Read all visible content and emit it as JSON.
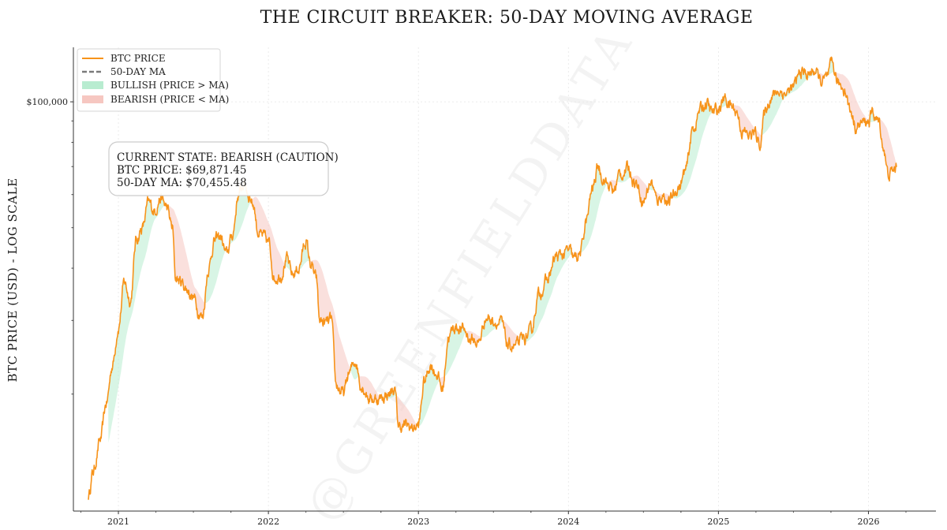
{
  "chart_data": {
    "type": "line",
    "title": "THE CIRCUIT BREAKER: 50-DAY MOVING AVERAGE",
    "xlabel": "",
    "ylabel": "BTC PRICE (USD) - LOG SCALE",
    "yscale": "log",
    "xlim": [
      2020.7,
      2026.45
    ],
    "ylim": [
      10500,
      135000
    ],
    "x_tick_labels": [
      "2021",
      "2022",
      "2023",
      "2024",
      "2025",
      "2026"
    ],
    "x_tick_values": [
      2021.0,
      2022.0,
      2023.0,
      2024.0,
      2025.0,
      2026.0
    ],
    "y_tick_labels": [
      "$100,000"
    ],
    "y_tick_values": [
      100000
    ],
    "y_minor_tick_values": [
      20000,
      30000,
      40000,
      50000,
      60000,
      70000,
      80000,
      90000
    ],
    "grid": true,
    "legend_position": "top-left",
    "legend": [
      {
        "label": "BTC PRICE",
        "kind": "line",
        "color": "#f7931a"
      },
      {
        "label": "50-DAY MA",
        "kind": "dashed",
        "color": "#7a7a7a"
      },
      {
        "label": "BULLISH (PRICE > MA)",
        "kind": "patch",
        "color": "#b8ecd0"
      },
      {
        "label": "BEARISH (PRICE < MA)",
        "kind": "patch",
        "color": "#f6c7c1"
      }
    ],
    "price_anchors": [
      [
        2020.8,
        11400
      ],
      [
        2020.83,
        13000
      ],
      [
        2020.88,
        15500
      ],
      [
        2020.92,
        19000
      ],
      [
        2020.96,
        23500
      ],
      [
        2021.0,
        29000
      ],
      [
        2021.04,
        37000
      ],
      [
        2021.08,
        33500
      ],
      [
        2021.12,
        47000
      ],
      [
        2021.16,
        50000
      ],
      [
        2021.2,
        57000
      ],
      [
        2021.24,
        55000
      ],
      [
        2021.28,
        59000
      ],
      [
        2021.32,
        56000
      ],
      [
        2021.36,
        50000
      ],
      [
        2021.38,
        38000
      ],
      [
        2021.42,
        37000
      ],
      [
        2021.46,
        35500
      ],
      [
        2021.5,
        34000
      ],
      [
        2021.54,
        31500
      ],
      [
        2021.56,
        30500
      ],
      [
        2021.6,
        40000
      ],
      [
        2021.64,
        46500
      ],
      [
        2021.68,
        47500
      ],
      [
        2021.72,
        43000
      ],
      [
        2021.76,
        48000
      ],
      [
        2021.8,
        60000
      ],
      [
        2021.84,
        64000
      ],
      [
        2021.87,
        60000
      ],
      [
        2021.9,
        57000
      ],
      [
        2021.93,
        49000
      ],
      [
        2021.96,
        47500
      ],
      [
        2022.0,
        46000
      ],
      [
        2022.04,
        38000
      ],
      [
        2022.08,
        38500
      ],
      [
        2022.12,
        42000
      ],
      [
        2022.16,
        38500
      ],
      [
        2022.2,
        40000
      ],
      [
        2022.25,
        46500
      ],
      [
        2022.28,
        41000
      ],
      [
        2022.32,
        37500
      ],
      [
        2022.34,
        30000
      ],
      [
        2022.38,
        29500
      ],
      [
        2022.42,
        30000
      ],
      [
        2022.45,
        21000
      ],
      [
        2022.5,
        20000
      ],
      [
        2022.54,
        22500
      ],
      [
        2022.58,
        24000
      ],
      [
        2022.62,
        21000
      ],
      [
        2022.68,
        19500
      ],
      [
        2022.74,
        19500
      ],
      [
        2022.8,
        20000
      ],
      [
        2022.84,
        20500
      ],
      [
        2022.87,
        16700
      ],
      [
        2022.92,
        16800
      ],
      [
        2022.96,
        16600
      ],
      [
        2023.0,
        16800
      ],
      [
        2023.04,
        21500
      ],
      [
        2023.08,
        23500
      ],
      [
        2023.12,
        22500
      ],
      [
        2023.16,
        20500
      ],
      [
        2023.2,
        27500
      ],
      [
        2023.25,
        29000
      ],
      [
        2023.3,
        28500
      ],
      [
        2023.35,
        27000
      ],
      [
        2023.4,
        26500
      ],
      [
        2023.45,
        30500
      ],
      [
        2023.5,
        30000
      ],
      [
        2023.55,
        29500
      ],
      [
        2023.6,
        26000
      ],
      [
        2023.65,
        26000
      ],
      [
        2023.7,
        27000
      ],
      [
        2023.75,
        28000
      ],
      [
        2023.8,
        34500
      ],
      [
        2023.85,
        37000
      ],
      [
        2023.92,
        42500
      ],
      [
        2023.96,
        43000
      ],
      [
        2024.0,
        44000
      ],
      [
        2024.04,
        42000
      ],
      [
        2024.08,
        43500
      ],
      [
        2024.12,
        52000
      ],
      [
        2024.16,
        62000
      ],
      [
        2024.2,
        70000
      ],
      [
        2024.23,
        66000
      ],
      [
        2024.27,
        63000
      ],
      [
        2024.3,
        61000
      ],
      [
        2024.34,
        67000
      ],
      [
        2024.4,
        69000
      ],
      [
        2024.45,
        64000
      ],
      [
        2024.5,
        58000
      ],
      [
        2024.55,
        64500
      ],
      [
        2024.59,
        58000
      ],
      [
        2024.63,
        60000
      ],
      [
        2024.67,
        57000
      ],
      [
        2024.7,
        60000
      ],
      [
        2024.74,
        63000
      ],
      [
        2024.78,
        68000
      ],
      [
        2024.83,
        86000
      ],
      [
        2024.88,
        96000
      ],
      [
        2024.92,
        99000
      ],
      [
        2024.96,
        94000
      ],
      [
        2025.0,
        96000
      ],
      [
        2025.04,
        102000
      ],
      [
        2025.08,
        98000
      ],
      [
        2025.12,
        95000
      ],
      [
        2025.16,
        85000
      ],
      [
        2025.2,
        83000
      ],
      [
        2025.24,
        84000
      ],
      [
        2025.28,
        80000
      ],
      [
        2025.31,
        95000
      ],
      [
        2025.35,
        103000
      ],
      [
        2025.4,
        106000
      ],
      [
        2025.45,
        105000
      ],
      [
        2025.5,
        108000
      ],
      [
        2025.55,
        118000
      ],
      [
        2025.6,
        116000
      ],
      [
        2025.64,
        119000
      ],
      [
        2025.68,
        112000
      ],
      [
        2025.72,
        113000
      ],
      [
        2025.76,
        122000
      ],
      [
        2025.8,
        110000
      ],
      [
        2025.84,
        108000
      ],
      [
        2025.88,
        95000
      ],
      [
        2025.92,
        87000
      ],
      [
        2025.96,
        89000
      ],
      [
        2026.0,
        90000
      ],
      [
        2026.03,
        94000
      ],
      [
        2026.07,
        89000
      ],
      [
        2026.1,
        78000
      ],
      [
        2026.13,
        67000
      ],
      [
        2026.16,
        68000
      ],
      [
        2026.19,
        69871.45
      ]
    ],
    "price_start": 2020.8,
    "ma_start": 2020.93,
    "ma_window_years": 0.137,
    "current_state": {
      "state_line": "CURRENT STATE: BEARISH (CAUTION)",
      "price_line": "BTC PRICE: $69,871.45",
      "ma_line": "50-DAY MA: $70,455.48",
      "price": 69871.45,
      "ma": 70455.48
    },
    "watermark": "@GREENFIELDDATA"
  },
  "colors": {
    "price": "#f7931a",
    "ma": "#7a7a7a",
    "bullish_fill": "#b8ecd0",
    "bearish_fill": "#f6c7c1"
  }
}
